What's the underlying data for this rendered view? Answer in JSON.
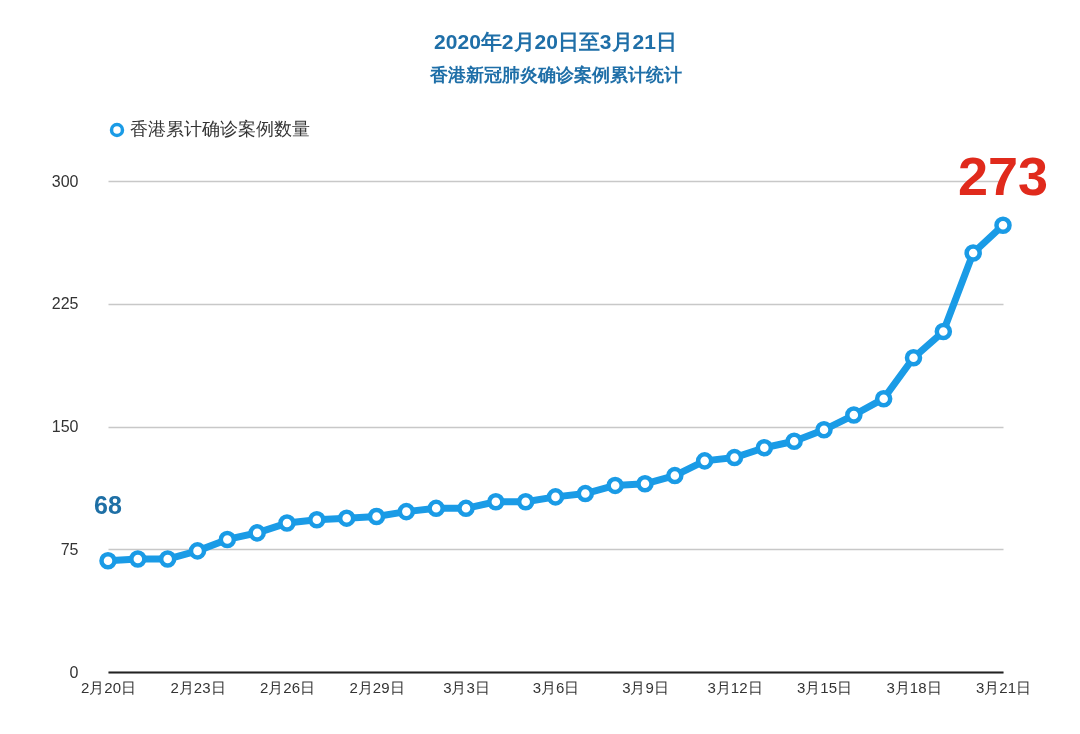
{
  "chart_data": {
    "type": "line",
    "title": "2020年2月20日至3月21日",
    "subtitle": "香港新冠肺炎确诊案例累计统计",
    "categories": [
      "2月20日",
      null,
      null,
      "2月23日",
      null,
      null,
      "2月26日",
      null,
      null,
      "2月29日",
      null,
      null,
      "3月3日",
      null,
      null,
      "3月6日",
      null,
      null,
      "3月9日",
      null,
      null,
      "3月12日",
      null,
      null,
      "3月15日",
      null,
      null,
      "3月18日",
      null,
      null,
      "3月21日"
    ],
    "series": [
      {
        "name": "香港累计确诊案例数量",
        "color": "#1a9be6",
        "values": [
          68,
          69,
          69,
          74,
          81,
          85,
          91,
          93,
          94,
          95,
          98,
          100,
          100,
          104,
          104,
          107,
          109,
          114,
          115,
          120,
          129,
          131,
          137,
          141,
          148,
          157,
          167,
          192,
          208,
          256,
          273
        ],
        "value_labels": [
          "68",
          null,
          null,
          null,
          null,
          null,
          null,
          null,
          null,
          null,
          null,
          null,
          null,
          null,
          null,
          null,
          null,
          null,
          null,
          null,
          null,
          null,
          null,
          null,
          null,
          null,
          null,
          null,
          null,
          null,
          "273"
        ]
      }
    ],
    "ylim": [
      0,
      300
    ],
    "yticks": [
      0,
      75,
      150,
      225,
      300
    ],
    "grid": "y",
    "legend": "top left",
    "marker": "circle",
    "line_style": "solid"
  }
}
